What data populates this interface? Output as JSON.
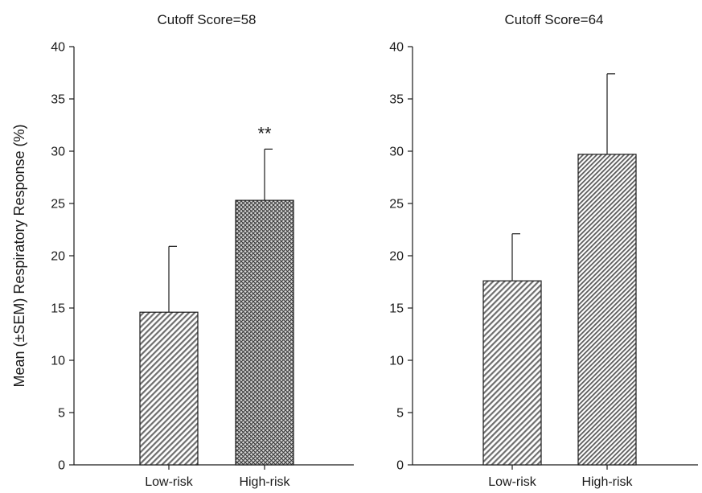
{
  "figure": {
    "ylabel": "Mean (±SEM) Respiratory Response (%)"
  },
  "chart_data": [
    {
      "type": "bar",
      "title": "Cutoff Score=58",
      "categories": [
        "Low-risk",
        "High-risk"
      ],
      "values": [
        14.6,
        25.3
      ],
      "errors": [
        6.3,
        4.9
      ],
      "annotations": [
        "",
        "**"
      ],
      "patterns": [
        "diagonal",
        "crosshatch"
      ],
      "ylabel": "Mean (±SEM) Respiratory Response (%)",
      "ylim": [
        0,
        40
      ],
      "yticks": [
        0,
        5,
        10,
        15,
        20,
        25,
        30,
        35,
        40
      ],
      "bar_fill": "#8c8c8c",
      "grid": false
    },
    {
      "type": "bar",
      "title": "Cutoff Score=64",
      "categories": [
        "Low-risk",
        "High-risk"
      ],
      "values": [
        17.6,
        29.7
      ],
      "errors": [
        4.5,
        7.7
      ],
      "annotations": [
        "",
        ""
      ],
      "patterns": [
        "diagonal",
        "diagonal-dense"
      ],
      "ylabel": "",
      "ylim": [
        0,
        40
      ],
      "yticks": [
        0,
        5,
        10,
        15,
        20,
        25,
        30,
        35,
        40
      ],
      "bar_fill": "#8c8c8c",
      "grid": false
    }
  ]
}
